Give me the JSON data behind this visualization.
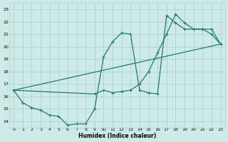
{
  "xlabel": "Humidex (Indice chaleur)",
  "bg_color": "#ceeae6",
  "grid_color": "#aad4cf",
  "line_color": "#217a72",
  "xlim": [
    -0.5,
    23.5
  ],
  "ylim": [
    13.5,
    23.5
  ],
  "yticks": [
    14,
    15,
    16,
    17,
    18,
    19,
    20,
    21,
    22,
    23
  ],
  "xticks": [
    0,
    1,
    2,
    3,
    4,
    5,
    6,
    7,
    8,
    9,
    10,
    11,
    12,
    13,
    14,
    15,
    16,
    17,
    18,
    19,
    20,
    21,
    22,
    23
  ],
  "line1_x": [
    0,
    1,
    2,
    3,
    4,
    5,
    6,
    7,
    8,
    9,
    10,
    11,
    12,
    13,
    14,
    15,
    16,
    17,
    18,
    19,
    20,
    21,
    22,
    23
  ],
  "line1_y": [
    16.5,
    15.5,
    15.1,
    14.9,
    14.5,
    14.4,
    13.7,
    13.8,
    13.8,
    15.0,
    19.2,
    20.4,
    21.1,
    21.0,
    16.5,
    16.3,
    16.2,
    22.5,
    21.9,
    21.4,
    21.4,
    21.4,
    21.0,
    20.2
  ],
  "line2_x": [
    0,
    9,
    10,
    11,
    12,
    13,
    14,
    15,
    16,
    17,
    18,
    19,
    20,
    21,
    22,
    23
  ],
  "line2_y": [
    16.5,
    16.2,
    16.5,
    16.3,
    16.4,
    16.5,
    17.0,
    18.0,
    19.5,
    21.0,
    22.6,
    21.9,
    21.4,
    21.4,
    21.4,
    20.2
  ],
  "line3_x": [
    0,
    23
  ],
  "line3_y": [
    16.5,
    20.2
  ]
}
